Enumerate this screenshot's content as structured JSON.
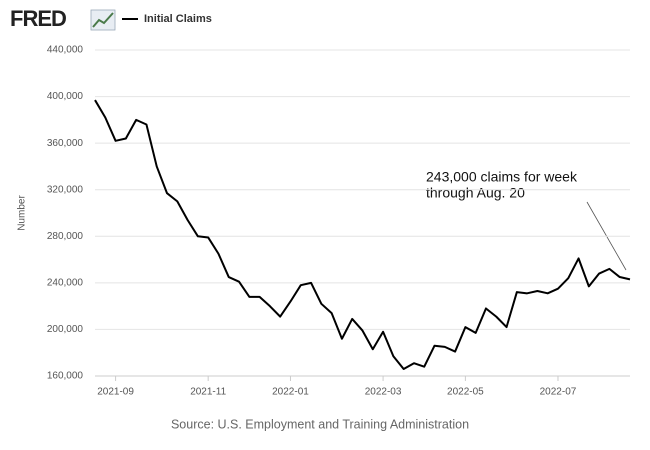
{
  "logo": "FRED",
  "chart_data": {
    "type": "line",
    "series": [
      {
        "name": "Initial Claims",
        "color": "#000000",
        "values": [
          397000,
          382000,
          362000,
          364000,
          380000,
          376000,
          340000,
          317000,
          310000,
          294000,
          280000,
          279000,
          265000,
          245000,
          241000,
          228000,
          228000,
          220000,
          211000,
          224000,
          238000,
          240000,
          222000,
          214000,
          192000,
          209000,
          199000,
          183000,
          198000,
          177000,
          166000,
          171000,
          168000,
          186000,
          185000,
          181000,
          202000,
          197000,
          218000,
          211000,
          202000,
          232000,
          231000,
          233000,
          231000,
          235000,
          244000,
          261000,
          237000,
          248000,
          252000,
          245000,
          243000
        ]
      }
    ],
    "categories": [
      null,
      null,
      "2021-09",
      null,
      null,
      null,
      null,
      null,
      null,
      null,
      null,
      "2021-11",
      null,
      null,
      null,
      null,
      null,
      null,
      null,
      "2022-01",
      null,
      null,
      null,
      null,
      null,
      null,
      null,
      null,
      "2022-03",
      null,
      null,
      null,
      null,
      null,
      null,
      null,
      "2022-05",
      null,
      null,
      null,
      null,
      null,
      null,
      null,
      null,
      "2022-07",
      null,
      null,
      null,
      null,
      null,
      null,
      null
    ],
    "ylim": [
      160000,
      440000
    ],
    "yticks": [
      {
        "value": 160000,
        "label": "160,000"
      },
      {
        "value": 200000,
        "label": "200,000"
      },
      {
        "value": 240000,
        "label": "240,000"
      },
      {
        "value": 280000,
        "label": "280,000"
      },
      {
        "value": 320000,
        "label": "320,000"
      },
      {
        "value": 360000,
        "label": "360,000"
      },
      {
        "value": 400000,
        "label": "400,000"
      },
      {
        "value": 440000,
        "label": "440,000"
      }
    ],
    "y_label": "Number",
    "grid": true,
    "annotation": [
      "243,000 claims for week",
      "through Aug. 20"
    ],
    "source": "Source: U.S. Employment and Training Administration"
  }
}
